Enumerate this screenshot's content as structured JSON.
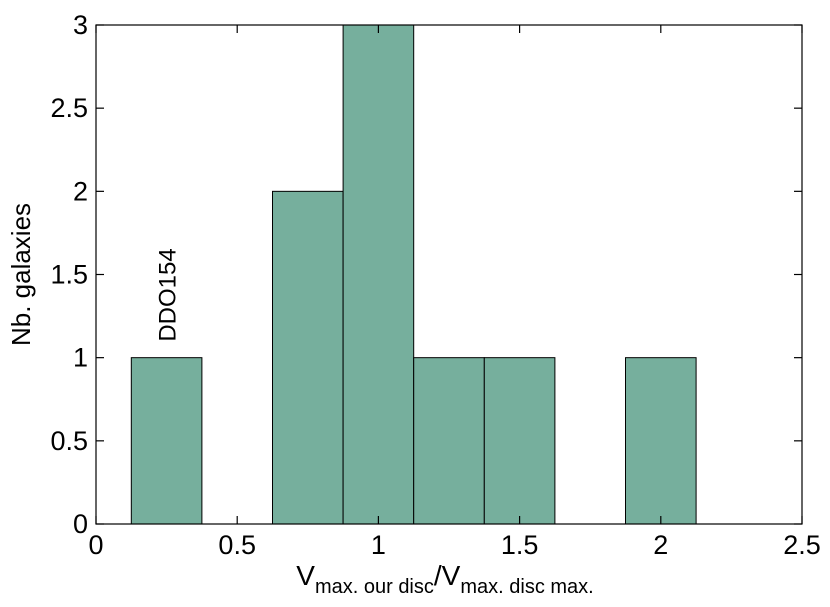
{
  "chart_data": {
    "type": "bar",
    "title": "",
    "x_bins": [
      {
        "start": 0.125,
        "end": 0.375,
        "count": 1
      },
      {
        "start": 0.625,
        "end": 0.875,
        "count": 2
      },
      {
        "start": 0.875,
        "end": 1.125,
        "count": 3
      },
      {
        "start": 1.125,
        "end": 1.375,
        "count": 1
      },
      {
        "start": 1.375,
        "end": 1.625,
        "count": 1
      },
      {
        "start": 1.875,
        "end": 2.125,
        "count": 1
      }
    ],
    "xlim": [
      0,
      2.5
    ],
    "ylim": [
      0,
      3
    ],
    "x_ticks": [
      "0",
      "0.5",
      "1",
      "1.5",
      "2",
      "2.5"
    ],
    "y_ticks": [
      "0",
      "0.5",
      "1",
      "1.5",
      "2",
      "2.5",
      "3"
    ],
    "xlabel": {
      "main1": "V",
      "sub1": "max. our disc",
      "slash": "/V",
      "sub2": "max. disc max."
    },
    "ylabel": "Nb. galaxies",
    "annotations": [
      {
        "text": "DDO154",
        "x": 0.25,
        "y": 1
      }
    ],
    "bar_color": "#76af9d",
    "grid": false
  }
}
